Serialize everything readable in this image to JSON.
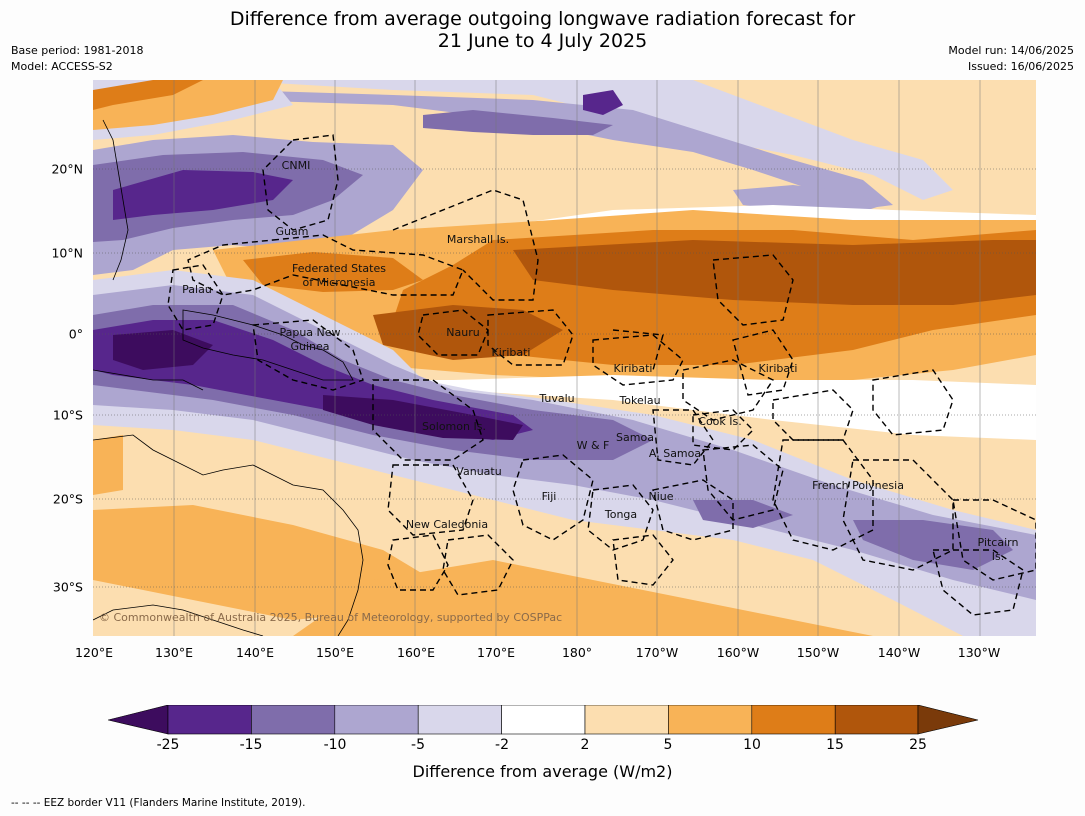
{
  "title_line1": "Difference from average outgoing longwave radiation forecast for",
  "title_line2": "21 June to 4 July 2025",
  "base_period": "Base period: 1981-2018",
  "model": "Model: ACCESS-S2",
  "model_run": "Model run: 14/06/2025",
  "issued": "Issued: 16/06/2025",
  "copyright": "© Commonwealth of Australia 2025, Bureau of Meteorology, supported by COSPPac",
  "lat_labels": [
    "20°N",
    "10°N",
    "0°",
    "10°S",
    "20°S",
    "30°S"
  ],
  "lon_labels": [
    "120°E",
    "130°E",
    "140°E",
    "150°E",
    "160°E",
    "170°E",
    "180°",
    "170°W",
    "160°W",
    "150°W",
    "140°W",
    "130°W"
  ],
  "regions": {
    "cnmi": "CNMI",
    "guam": "Guam",
    "marshall": "Marshall Is.",
    "fsm1": "Federated States",
    "fsm2": "of Micronesia",
    "palau": "Palau",
    "png1": "Papua New",
    "png2": "Guinea",
    "nauru": "Nauru",
    "kiribati_w": "Kiribati",
    "kiribati_c": "Kiribati",
    "kiribati_e": "Kiribati",
    "tuvalu": "Tuvalu",
    "tokelau": "Tokelau",
    "cook": "Cook Is.",
    "solomon": "Solomon Is.",
    "wf": "W & F",
    "samoa": "Samoa",
    "asamoa": "A. Samoa",
    "vanuatu": "Vanuatu",
    "fiji": "Fiji",
    "niue": "Niue",
    "tonga": "Tonga",
    "frpoly": "French Polynesia",
    "newcal": "New Caledonia",
    "pitcairn1": "Pitcairn",
    "pitcairn2": "Is."
  },
  "colorbar": {
    "ticks": [
      "-25",
      "-15",
      "-10",
      "-5",
      "-2",
      "2",
      "5",
      "10",
      "15",
      "25"
    ],
    "colors": [
      "#3d0c5e",
      "#57268c",
      "#7f6dab",
      "#ada6d0",
      "#d9d7eb",
      "#ffffff",
      "#fcdeb0",
      "#f8b357",
      "#de7d18",
      "#b0560c",
      "#7a3a0a"
    ],
    "label": "Difference from average (W/m2)"
  },
  "footer": "--  --  -- EEZ border V11 (Flanders Marine Institute, 2019)."
}
